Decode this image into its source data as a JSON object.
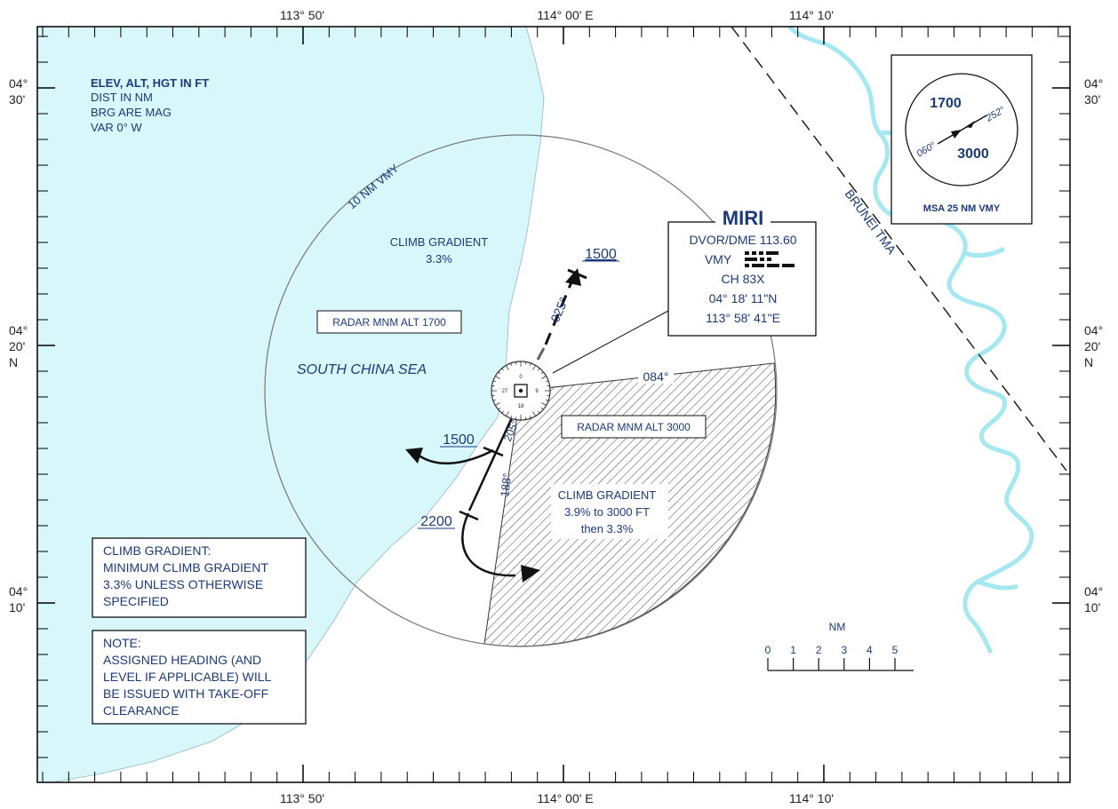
{
  "top_scale": {
    "w1": "113° 50'",
    "center": "114° 00' E",
    "e1": "114° 10'"
  },
  "bottom_scale": {
    "w1": "113° 50'",
    "center": "114° 00' E",
    "e1": "114° 10'"
  },
  "left_scale": {
    "lat30_a": "04°",
    "lat30_b": "30'",
    "lat20_a": "04°",
    "lat20_b": "20'",
    "lat20_c": "N",
    "lat10_a": "04°",
    "lat10_b": "10'"
  },
  "right_scale": {
    "lat30_a": "04°",
    "lat30_b": "30'",
    "lat20_a": "04°",
    "lat20_b": "20'",
    "lat20_c": "N",
    "lat10_a": "04°",
    "lat10_b": "10'"
  },
  "notes": {
    "units_title": "ELEV, ALT, HGT IN FT",
    "units_dist": "DIST IN NM",
    "units_brg": "BRG ARE MAG",
    "units_var": "VAR 0° W"
  },
  "areas": {
    "circle_label": "10 NM VMY",
    "climb_nw_1": "CLIMB GRADIENT",
    "climb_nw_2": "3.3%",
    "radar_1700": "RADAR MNM ALT 1700",
    "sea": "SOUTH CHINA SEA",
    "radar_3000": "RADAR MNM ALT 3000",
    "climb_se_1": "CLIMB GRADIENT",
    "climb_se_2": "3.9% to 3000 FT",
    "climb_se_3": "then 3.3%",
    "brg_084": "084°",
    "brg_025": "025°",
    "brg_205": "205°",
    "brg_188": "188°",
    "alt_1500_ne": "1500",
    "alt_1500_sw": "1500",
    "alt_2200": "2200",
    "rose_n": "0",
    "rose_e": "9",
    "rose_s": "18",
    "rose_w": "27"
  },
  "navaid": {
    "name": "MIRI",
    "freq": "DVOR/DME 113.60",
    "ident": "VMY",
    "channel": "CH 83X",
    "lat": "04° 18' 11\"N",
    "lon": "113° 58' 41\"E"
  },
  "msa": {
    "top_alt": "1700",
    "bottom_alt": "3000",
    "brg_060": "060°",
    "brg_252": "252°",
    "caption": "MSA 25 NM VMY"
  },
  "tma_label": "BRUNEI TMA",
  "scale_bar": {
    "unit": "NM",
    "ticks": [
      "0",
      "1",
      "2",
      "3",
      "4",
      "5"
    ]
  },
  "boxes": {
    "climb_title": "CLIMB GRADIENT:",
    "climb_l1": "MINIMUM CLIMB GRADIENT",
    "climb_l2": "3.3% UNLESS OTHERWISE",
    "climb_l3": "SPECIFIED",
    "note_title": "NOTE:",
    "note_l1": "ASSIGNED HEADING (AND",
    "note_l2": "LEVEL IF APPLICABLE) WILL",
    "note_l3": "BE ISSUED WITH TAKE-OFF",
    "note_l4": "CLEARANCE"
  },
  "colors": {
    "sea": "#d8f7fb",
    "river": "#a6e8f0",
    "text": "#1a3a7a"
  }
}
